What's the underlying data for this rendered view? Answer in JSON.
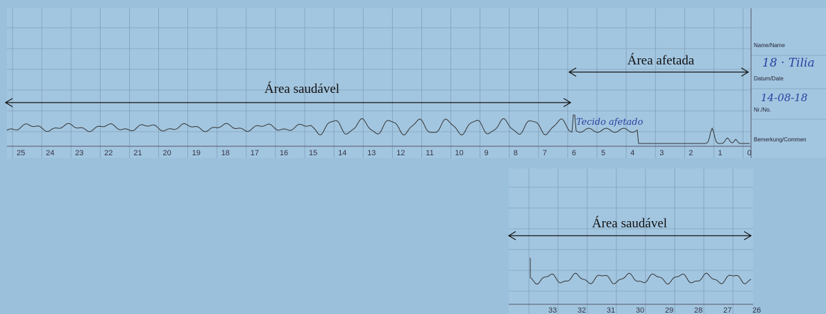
{
  "top_strip": {
    "healthy_label": "Área saudável",
    "affected_label": "Área afetada",
    "handwritten_note": "Tecido afetado",
    "scale": [
      25,
      24,
      23,
      22,
      21,
      20,
      19,
      18,
      17,
      16,
      15,
      14,
      13,
      12,
      11,
      10,
      9,
      8,
      7,
      6,
      5,
      4,
      3,
      2,
      1,
      0
    ],
    "form": {
      "name_field": "Name/Name",
      "name_value": "18 · Tilia",
      "date_field": "Datum/Date",
      "date_value": "14-08-18",
      "number_field": "Nr./No.",
      "remark_field": "Bemerkung/Commen"
    }
  },
  "bottom_strip": {
    "healthy_label": "Área saudável",
    "scale": [
      33,
      32,
      31,
      30,
      29,
      28,
      27,
      26
    ]
  }
}
